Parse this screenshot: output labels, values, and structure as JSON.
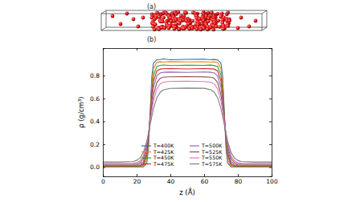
{
  "panel_labels": [
    "(a)",
    "(b)"
  ],
  "chart_data": {
    "type": "line",
    "x_label": "z (Å)",
    "y_label": "ρ (g/cm³)",
    "x": [
      0,
      10,
      18,
      20,
      22,
      24,
      26,
      27,
      28,
      29,
      30,
      32,
      34,
      36,
      40,
      50,
      60,
      64,
      66,
      68,
      70,
      71,
      72,
      73,
      74,
      76,
      78,
      80,
      82,
      90,
      100
    ],
    "xlim": [
      0,
      100
    ],
    "xticks": [
      0,
      20,
      40,
      60,
      80,
      100
    ],
    "ylim": [
      -0.08,
      1.04
    ],
    "yticks": [
      {
        "value": 0,
        "label": "0.0"
      },
      0.2,
      0.4,
      0.6,
      0.8
    ],
    "grid": false,
    "legend": "lower center",
    "series": [
      {
        "name": "T=400K",
        "color": "#1f77b4",
        "values": [
          0.002,
          0.002,
          0.002,
          0.002,
          0.002,
          0.003,
          0.034,
          0.151,
          0.471,
          0.791,
          0.908,
          0.939,
          0.94,
          0.945,
          0.938,
          0.942,
          0.944,
          0.939,
          0.941,
          0.937,
          0.908,
          0.791,
          0.471,
          0.151,
          0.034,
          0.003,
          0.002,
          0.002,
          0.002,
          0.002,
          0.002
        ]
      },
      {
        "name": "T=425K",
        "color": "#ff7f0e",
        "values": [
          0.004,
          0.004,
          0.004,
          0.004,
          0.004,
          0.008,
          0.064,
          0.195,
          0.462,
          0.729,
          0.86,
          0.915,
          0.92,
          0.917,
          0.922,
          0.919,
          0.921,
          0.918,
          0.92,
          0.914,
          0.86,
          0.729,
          0.462,
          0.195,
          0.064,
          0.008,
          0.004,
          0.004,
          0.004,
          0.004,
          0.004
        ]
      },
      {
        "name": "T=450K",
        "color": "#2ca02c",
        "values": [
          0.007,
          0.007,
          0.007,
          0.007,
          0.008,
          0.017,
          0.094,
          0.226,
          0.449,
          0.671,
          0.803,
          0.879,
          0.89,
          0.893,
          0.888,
          0.891,
          0.889,
          0.892,
          0.887,
          0.879,
          0.803,
          0.671,
          0.449,
          0.226,
          0.094,
          0.017,
          0.008,
          0.007,
          0.007,
          0.007,
          0.007
        ]
      },
      {
        "name": "T=475K",
        "color": "#d62728",
        "values": [
          0.012,
          0.012,
          0.012,
          0.012,
          0.015,
          0.03,
          0.121,
          0.248,
          0.436,
          0.624,
          0.751,
          0.841,
          0.857,
          0.86,
          0.862,
          0.858,
          0.861,
          0.859,
          0.857,
          0.841,
          0.751,
          0.624,
          0.436,
          0.248,
          0.121,
          0.03,
          0.015,
          0.012,
          0.012,
          0.012,
          0.012
        ]
      },
      {
        "name": "T=500K",
        "color": "#9467bd",
        "values": [
          0.018,
          0.018,
          0.018,
          0.019,
          0.025,
          0.05,
          0.154,
          0.27,
          0.424,
          0.578,
          0.694,
          0.798,
          0.823,
          0.829,
          0.831,
          0.828,
          0.832,
          0.829,
          0.823,
          0.798,
          0.694,
          0.578,
          0.424,
          0.27,
          0.154,
          0.05,
          0.025,
          0.019,
          0.018,
          0.018,
          0.018
        ]
      },
      {
        "name": "T=525K",
        "color": "#8c564b",
        "values": [
          0.025,
          0.025,
          0.026,
          0.029,
          0.039,
          0.075,
          0.185,
          0.284,
          0.408,
          0.531,
          0.63,
          0.74,
          0.776,
          0.786,
          0.79,
          0.792,
          0.789,
          0.786,
          0.776,
          0.74,
          0.63,
          0.531,
          0.408,
          0.284,
          0.185,
          0.075,
          0.039,
          0.029,
          0.026,
          0.025,
          0.025
        ]
      },
      {
        "name": "T=550K",
        "color": "#e377c2",
        "values": [
          0.033,
          0.033,
          0.035,
          0.04,
          0.055,
          0.099,
          0.207,
          0.292,
          0.392,
          0.491,
          0.576,
          0.684,
          0.728,
          0.743,
          0.749,
          0.751,
          0.748,
          0.743,
          0.728,
          0.684,
          0.576,
          0.491,
          0.392,
          0.292,
          0.207,
          0.099,
          0.055,
          0.04,
          0.035,
          0.033,
          0.033
        ]
      },
      {
        "name": "T=575K",
        "color": "#7f7f7f",
        "values": [
          0.045,
          0.045,
          0.05,
          0.059,
          0.08,
          0.128,
          0.224,
          0.292,
          0.368,
          0.443,
          0.511,
          0.607,
          0.655,
          0.676,
          0.688,
          0.691,
          0.689,
          0.676,
          0.655,
          0.607,
          0.511,
          0.443,
          0.368,
          0.292,
          0.224,
          0.128,
          0.08,
          0.059,
          0.05,
          0.045,
          0.045
        ]
      }
    ]
  }
}
